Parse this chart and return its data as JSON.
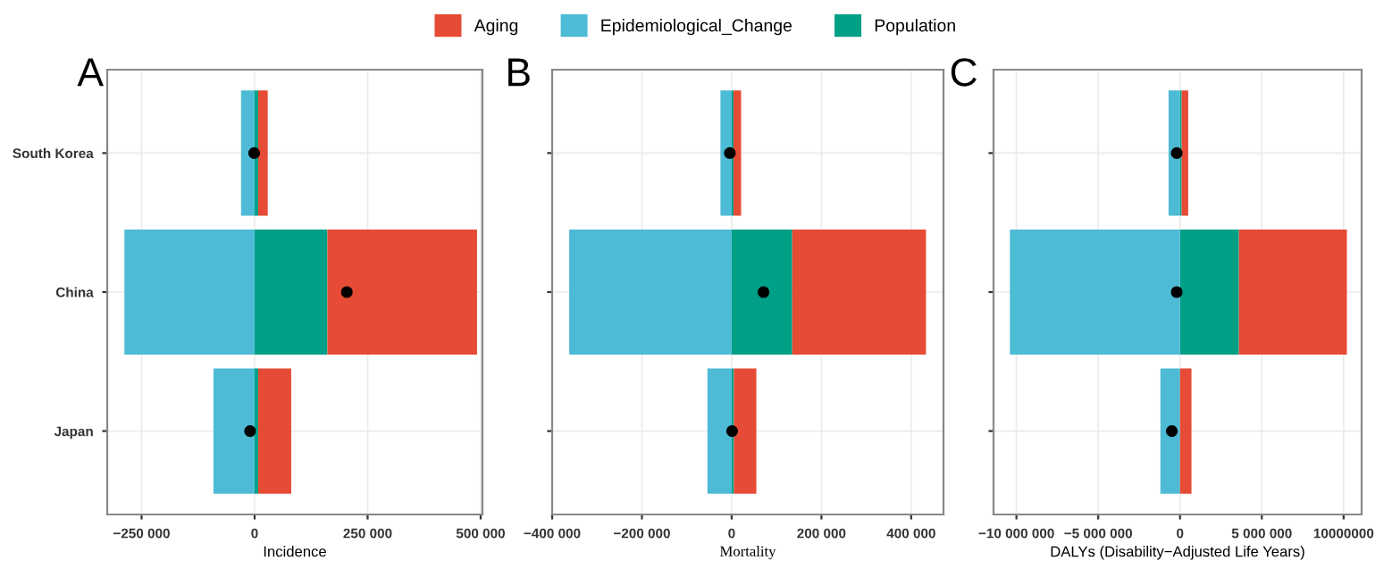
{
  "chart_data": [
    {
      "type": "bar",
      "orientation": "horizontal",
      "stacked": true,
      "title": "A",
      "xlabel": "Incidence",
      "categories": [
        "South Korea",
        "China",
        "Japan"
      ],
      "series": [
        {
          "name": "Population",
          "color": "#00a087",
          "values": [
            8000,
            161000,
            8000
          ]
        },
        {
          "name": "Epidemiological_Change",
          "color": "#4dbbd5",
          "values": [
            -30000,
            -288000,
            -91000
          ]
        },
        {
          "name": "Aging",
          "color": "#e64b35",
          "values": [
            21000,
            331000,
            73000
          ]
        },
        {
          "type": "scatter",
          "color": "#000000",
          "values": [
            -1000,
            204000,
            -10000
          ]
        }
      ],
      "xlim": [
        -326000,
        504000
      ],
      "xticks": [
        {
          "value": -250000,
          "label": "−250 000"
        },
        0,
        {
          "value": 250000,
          "label": "250 000"
        },
        {
          "value": 500000,
          "label": "500 000"
        }
      ],
      "grid": true,
      "legend": "top",
      "marker": "circle"
    },
    {
      "type": "bar",
      "orientation": "horizontal",
      "stacked": true,
      "title": "B",
      "xlabel": "Mortality",
      "categories": [
        null,
        null,
        null
      ],
      "series": [
        {
          "color": "#00a087",
          "values": [
            4000,
            135000,
            5000
          ]
        },
        {
          "color": "#4dbbd5",
          "values": [
            -25000,
            -362000,
            -54000
          ]
        },
        {
          "color": "#e64b35",
          "values": [
            17000,
            298000,
            50000
          ]
        },
        {
          "type": "scatter",
          "color": "#000000",
          "values": [
            -4000,
            71000,
            1000
          ]
        }
      ],
      "xlim": [
        -400000,
        472000
      ],
      "xticks": [
        {
          "value": -400000,
          "label": "−400 000"
        },
        {
          "value": -200000,
          "label": "−200 000"
        },
        0,
        {
          "value": 200000,
          "label": "200 000"
        },
        {
          "value": 400000,
          "label": "400 000"
        }
      ],
      "grid": true,
      "tick_labels": "x",
      "marker": "circle"
    },
    {
      "type": "bar",
      "orientation": "horizontal",
      "stacked": true,
      "title": "C",
      "xlabel": "DALYs (Disability−Adjusted Life Years)",
      "categories": [
        null,
        null,
        null
      ],
      "series": [
        {
          "color": "#00a087",
          "values": [
            100000,
            3600000,
            0
          ]
        },
        {
          "color": "#4dbbd5",
          "values": [
            -700000,
            -10400000,
            -1200000
          ]
        },
        {
          "color": "#e64b35",
          "values": [
            400000,
            6600000,
            700000
          ]
        },
        {
          "type": "scatter",
          "color": "#000000",
          "values": [
            -200000,
            -200000,
            -500000
          ]
        }
      ],
      "xlim": [
        -11400000,
        11100000
      ],
      "xticks": [
        {
          "value": -10000000,
          "label": "−10 000 000"
        },
        {
          "value": -5000000,
          "label": "−5 000 000"
        },
        0,
        {
          "value": 5000000,
          "label": "5 000 000"
        },
        {
          "value": 10000000,
          "label": "10000000"
        }
      ],
      "grid": true,
      "tick_labels": "x",
      "marker": "circle"
    }
  ]
}
